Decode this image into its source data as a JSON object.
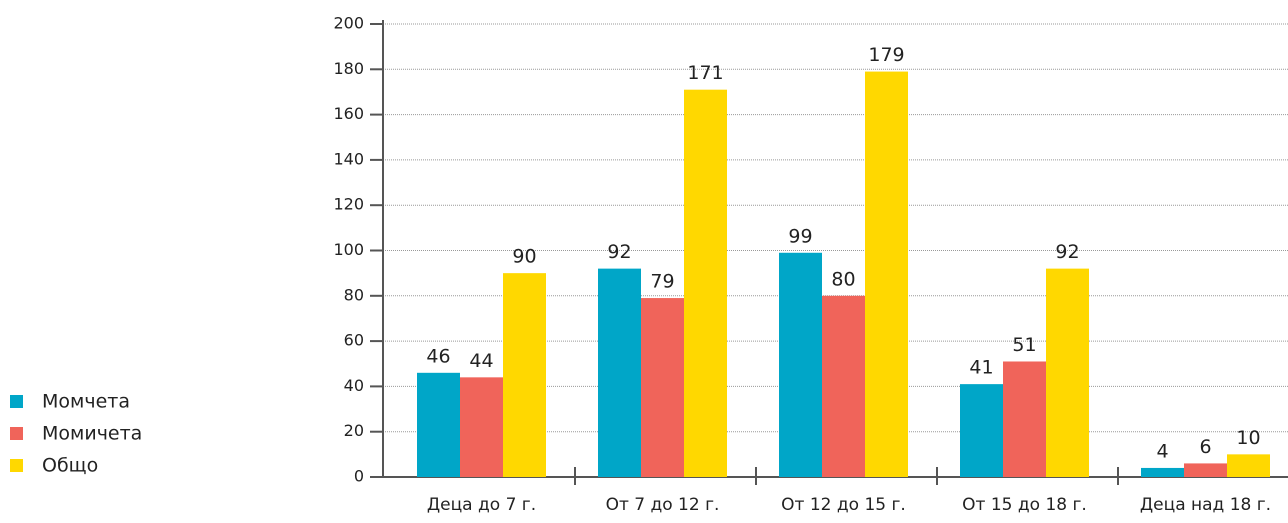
{
  "chart_data": {
    "type": "bar",
    "categories": [
      "Деца до 7 г.",
      "От 7 до 12 г.",
      "От 12 до 15 г.",
      "От 15 до 18 г.",
      "Деца над 18 г."
    ],
    "series": [
      {
        "name": "Момчета",
        "color": "#00a6c8",
        "values": [
          46,
          92,
          99,
          41,
          4
        ]
      },
      {
        "name": "Момичета",
        "color": "#f0645a",
        "values": [
          44,
          79,
          80,
          51,
          6
        ]
      },
      {
        "name": "Общо",
        "color": "#ffd800",
        "values": [
          90,
          171,
          179,
          92,
          10
        ]
      }
    ],
    "ylim": [
      0,
      200
    ],
    "yticks": [
      0,
      20,
      40,
      60,
      80,
      100,
      120,
      140,
      160,
      180,
      200
    ],
    "grid": true,
    "legend": "left"
  }
}
